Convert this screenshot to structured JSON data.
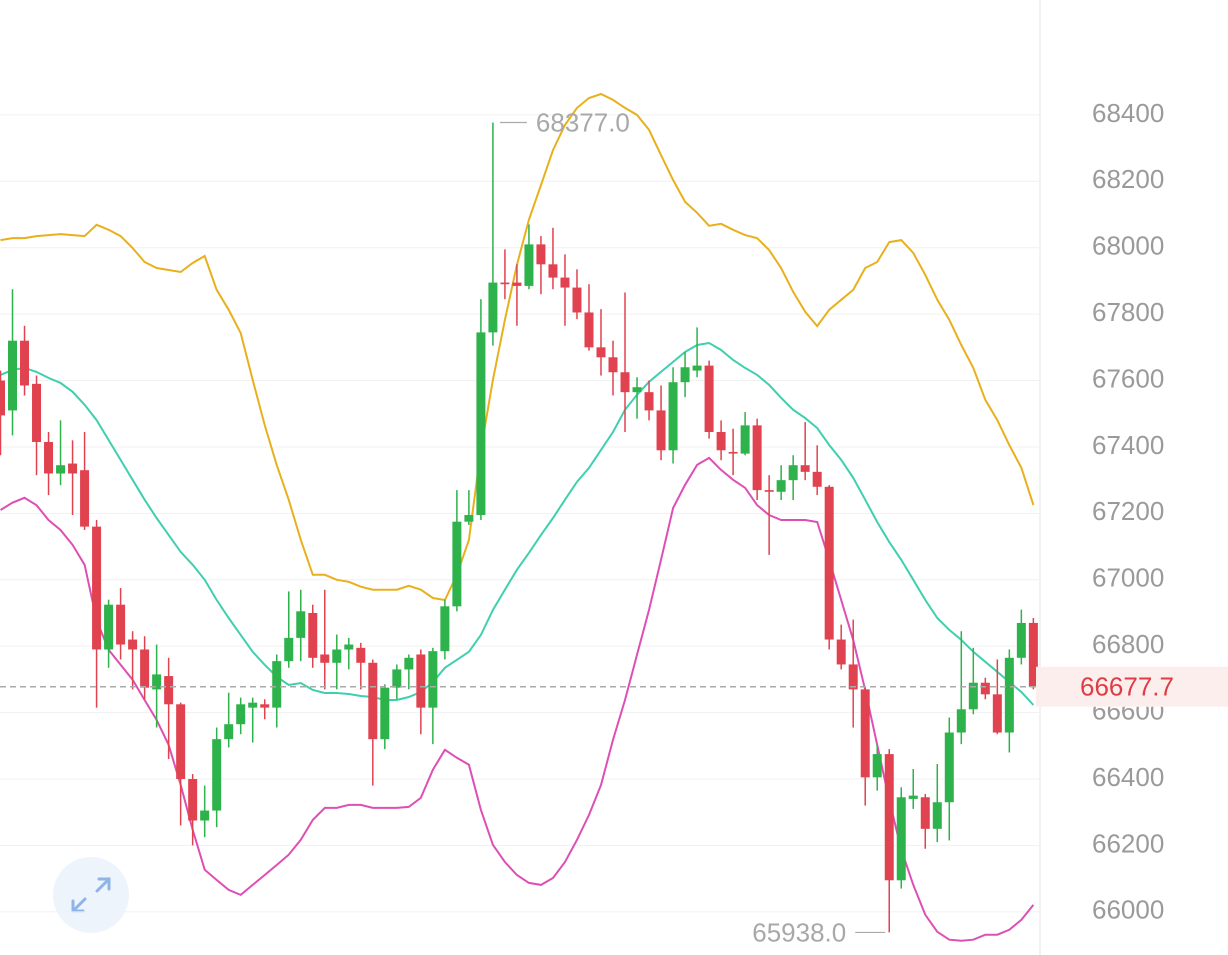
{
  "chart_data": {
    "type": "candlestick",
    "ylim": [
      65870,
      68746
    ],
    "yticks": [
      66000,
      66200,
      66400,
      66600,
      66800,
      67000,
      67200,
      67400,
      67600,
      67800,
      68000,
      68200,
      68400
    ],
    "grid": true,
    "up_color": "#2eb24b",
    "down_color": "#e1424f",
    "open": [
      67600,
      67510,
      67720,
      67590,
      67415,
      67320,
      67350,
      67330,
      67160,
      66790,
      66925,
      66820,
      66790,
      66670,
      66710,
      66625,
      66400,
      66275,
      66305,
      66520,
      66565,
      66615,
      66625,
      66615,
      66755,
      66825,
      66900,
      66775,
      66750,
      66790,
      66795,
      66750,
      66520,
      66675,
      66730,
      66775,
      66615,
      66785,
      66920,
      67175,
      67195,
      67745,
      67895,
      67895,
      67885,
      68010,
      67950,
      67910,
      67880,
      67805,
      67700,
      67670,
      67625,
      67565,
      67565,
      67510,
      67390,
      67595,
      67630,
      67645,
      67445,
      67385,
      67380,
      67465,
      67270,
      67265,
      67300,
      67345,
      67325,
      67280,
      66820,
      66745,
      66670,
      66405,
      66475,
      66095,
      66340,
      66345,
      66250,
      66330,
      66540,
      66610,
      66690,
      66655,
      66540,
      66765,
      66870
    ],
    "high": [
      67630,
      67875,
      67765,
      67615,
      67445,
      67480,
      67420,
      67445,
      67180,
      66940,
      66975,
      66845,
      66830,
      66805,
      66765,
      66630,
      66415,
      66380,
      66555,
      66660,
      66645,
      66645,
      66640,
      66775,
      66965,
      66970,
      66925,
      66970,
      66835,
      66825,
      66810,
      66760,
      66685,
      66745,
      66775,
      66790,
      66795,
      66940,
      67270,
      67270,
      67845,
      68377,
      67995,
      67950,
      68070,
      68035,
      68060,
      67980,
      67935,
      67890,
      67815,
      67720,
      67865,
      67610,
      67600,
      67585,
      67640,
      67685,
      67760,
      67660,
      67480,
      67455,
      67505,
      67485,
      67315,
      67345,
      67375,
      67475,
      67405,
      67285,
      66865,
      66880,
      66675,
      66505,
      66490,
      66375,
      66430,
      66355,
      66445,
      66585,
      66845,
      66795,
      66705,
      66760,
      66790,
      66910,
      66885
    ],
    "low": [
      67375,
      67435,
      67555,
      67315,
      67255,
      67285,
      67195,
      67150,
      66615,
      66735,
      66760,
      66670,
      66640,
      66555,
      66460,
      66260,
      66200,
      66225,
      66255,
      66495,
      66535,
      66510,
      66580,
      66555,
      66735,
      66755,
      66735,
      66670,
      66670,
      66730,
      66670,
      66380,
      66490,
      66640,
      66670,
      66535,
      66505,
      66760,
      66905,
      67165,
      67180,
      67705,
      67845,
      67765,
      67875,
      67860,
      67875,
      67765,
      67785,
      67690,
      67615,
      67555,
      67445,
      67485,
      67480,
      67360,
      67350,
      67550,
      67610,
      67425,
      67360,
      67315,
      67375,
      67240,
      67075,
      67240,
      67240,
      67300,
      67255,
      66790,
      66730,
      66555,
      66320,
      66365,
      65938,
      66070,
      66310,
      66190,
      66210,
      66215,
      66505,
      66595,
      66640,
      66535,
      66480,
      66745,
      66670
    ],
    "close": [
      67495,
      67720,
      67585,
      67415,
      67320,
      67345,
      67320,
      67160,
      66790,
      66925,
      66805,
      66790,
      66675,
      66715,
      66625,
      66400,
      66275,
      66305,
      66520,
      66565,
      66625,
      66630,
      66615,
      66755,
      66825,
      66905,
      66765,
      66750,
      66790,
      66805,
      66750,
      66520,
      66675,
      66730,
      66765,
      66615,
      66785,
      66920,
      67175,
      67195,
      67745,
      67895,
      67890,
      67885,
      68010,
      67950,
      67910,
      67880,
      67805,
      67700,
      67670,
      67625,
      67565,
      67580,
      67510,
      67390,
      67595,
      67640,
      67645,
      67445,
      67390,
      67380,
      67465,
      67270,
      67265,
      67300,
      67345,
      67325,
      67280,
      66820,
      66745,
      66670,
      66405,
      66475,
      66095,
      66345,
      66350,
      66250,
      66330,
      66540,
      66610,
      66690,
      66655,
      66540,
      66765,
      66870,
      66677.7
    ],
    "bands": [
      {
        "color": "#e8b01c",
        "values": [
          68023,
          68029,
          68029,
          68035,
          68038,
          68041,
          68038,
          68035,
          68069,
          68054,
          68035,
          67999,
          67957,
          67939,
          67933,
          67927,
          67954,
          67975,
          67873,
          67813,
          67743,
          67602,
          67466,
          67346,
          67241,
          67120,
          67015,
          67015,
          67000,
          66994,
          66979,
          66970,
          66970,
          66970,
          66982,
          66970,
          66945,
          66939,
          67015,
          67120,
          67391,
          67602,
          67783,
          67948,
          68084,
          68189,
          68294,
          68370,
          68421,
          68451,
          68463,
          68445,
          68421,
          68400,
          68355,
          68279,
          68204,
          68138,
          68105,
          68066,
          68072,
          68054,
          68038,
          68029,
          67993,
          67939,
          67867,
          67807,
          67764,
          67813,
          67843,
          67873,
          67939,
          67957,
          68017,
          68023,
          67984,
          67918,
          67843,
          67783,
          67707,
          67638,
          67542,
          67481,
          67406,
          67337,
          67225
        ]
      },
      {
        "color": "#3fcfae",
        "values": [
          67617,
          67632,
          67638,
          67626,
          67608,
          67593,
          67566,
          67527,
          67481,
          67421,
          67361,
          67301,
          67241,
          67186,
          67135,
          67084,
          67045,
          67000,
          66939,
          66885,
          66834,
          66783,
          66744,
          66708,
          66683,
          66689,
          66668,
          66659,
          66659,
          66656,
          66650,
          66647,
          66638,
          66638,
          66647,
          66662,
          66692,
          66735,
          66759,
          66783,
          66834,
          66909,
          66970,
          67030,
          67081,
          67135,
          67186,
          67241,
          67295,
          67337,
          67391,
          67445,
          67512,
          67557,
          67596,
          67626,
          67656,
          67686,
          67707,
          67713,
          67692,
          67662,
          67638,
          67617,
          67587,
          67548,
          67512,
          67487,
          67457,
          67406,
          67361,
          67307,
          67241,
          67174,
          67114,
          67060,
          67000,
          66939,
          66885,
          66849,
          66819,
          66783,
          66753,
          66723,
          66692,
          66662,
          66623
        ]
      },
      {
        "color": "#de4fb4",
        "values": [
          67210,
          67232,
          67247,
          67225,
          67180,
          67150,
          67105,
          67045,
          66879,
          66789,
          66744,
          66699,
          66638,
          66578,
          66503,
          66382,
          66247,
          66127,
          66096,
          66066,
          66051,
          66081,
          66111,
          66141,
          66172,
          66217,
          66277,
          66313,
          66313,
          66322,
          66322,
          66313,
          66313,
          66313,
          66316,
          66343,
          66428,
          66488,
          66464,
          66443,
          66307,
          66202,
          66150,
          66111,
          66087,
          66081,
          66102,
          66150,
          66217,
          66292,
          66382,
          66518,
          66638,
          66774,
          66909,
          67060,
          67216,
          67286,
          67346,
          67367,
          67331,
          67301,
          67277,
          67225,
          67195,
          67180,
          67180,
          67180,
          67174,
          67060,
          66939,
          66819,
          66668,
          66503,
          66337,
          66187,
          66081,
          65991,
          65940,
          65916,
          65913,
          65916,
          65931,
          65931,
          65946,
          65976,
          66021
        ]
      }
    ],
    "last_price": 66677.7,
    "last_price_color": "#e03c45",
    "annotations": [
      {
        "index": 41,
        "value": 68377,
        "label": "68377.0"
      },
      {
        "index": 74,
        "value": 65938,
        "label": "65938.0"
      }
    ]
  }
}
